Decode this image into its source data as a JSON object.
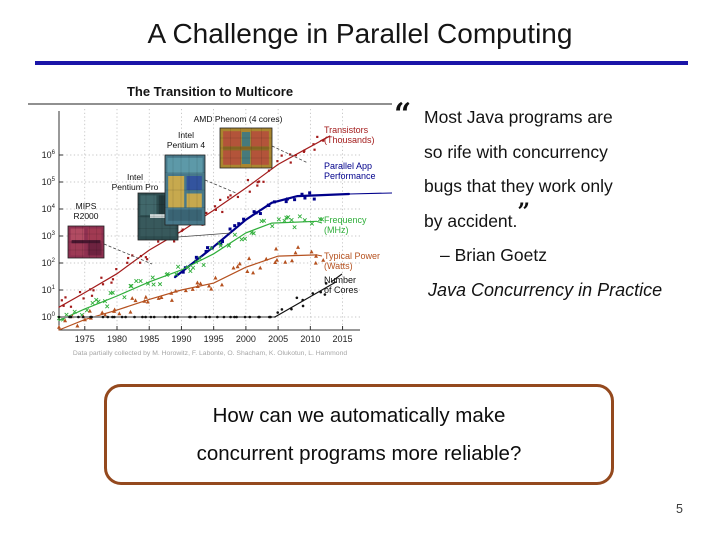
{
  "slide": {
    "title": "A Challenge in Parallel Computing",
    "accent_rule_color": "#1a15a8",
    "page_number": "5",
    "quote": {
      "open_mark": "“",
      "close_mark": "”",
      "lines": [
        "Most Java programs are",
        "so rife with concurrency",
        "bugs that they work only",
        "by accident."
      ],
      "attribution": "– Brian Goetz",
      "source": "Java Concurrency in Practice"
    },
    "question_box": {
      "border_color": "#94491e",
      "line1": "How can we automatically make",
      "line2": "concurrent programs more reliable?"
    }
  },
  "chart_data": {
    "type": "scatter",
    "title": "The Transition to Multicore",
    "caption": "Data partially collected by M. Horowitz, F. Labonte, O. Shacham, K. Olukotun, L. Hammond",
    "x_range": [
      1971,
      2016
    ],
    "x_ticks": [
      1975,
      1980,
      1985,
      1990,
      1995,
      2000,
      2005,
      2010,
      2015
    ],
    "y_scale": "log10",
    "y_tick_exponents": [
      0,
      1,
      2,
      3,
      4,
      5,
      6
    ],
    "ylim_exponents": [
      -0.5,
      7
    ],
    "grid": true,
    "legend_position": "right",
    "series": [
      {
        "name": "Transistors (Thousands)",
        "legend_lines": [
          "Transistors",
          "(Thousands)"
        ],
        "color": "#a31b1b",
        "marker": "square",
        "marker_size": 2.2,
        "line_width": 1.2,
        "trend": [
          [
            1971,
            2.3
          ],
          [
            1975,
            8
          ],
          [
            1980,
            40
          ],
          [
            1985,
            300
          ],
          [
            1990,
            1500
          ],
          [
            1995,
            9000
          ],
          [
            2000,
            60000
          ],
          [
            2005,
            450000
          ],
          [
            2009,
            1500000
          ],
          [
            2013,
            5000000
          ]
        ],
        "scatter": {
          "range": [
            1971,
            2012
          ],
          "count": 58,
          "jitter": 0.3
        }
      },
      {
        "name": "Parallel App Performance",
        "legend_lines": [
          "Parallel App",
          "Performance"
        ],
        "color": "#00008b",
        "marker": "square",
        "marker_size": 3.0,
        "line_width": 2.2,
        "trend": [
          [
            1989,
            30
          ],
          [
            1995,
            400
          ],
          [
            2000,
            4000
          ],
          [
            2004,
            17000
          ],
          [
            2008,
            30000
          ],
          [
            2016,
            36000
          ]
        ],
        "scatter": {
          "range": [
            1990,
            2011
          ],
          "count": 26,
          "jitter": 0.15
        }
      },
      {
        "name": "Frequency (MHz)",
        "legend_lines": [
          "Frequency",
          "(MHz)"
        ],
        "color": "#2fae3a",
        "marker": "x",
        "marker_size": 1.8,
        "line_width": 1.2,
        "trend": [
          [
            1971,
            0.74
          ],
          [
            1975,
            2
          ],
          [
            1980,
            6
          ],
          [
            1985,
            20
          ],
          [
            1990,
            55
          ],
          [
            1995,
            220
          ],
          [
            2000,
            1300
          ],
          [
            2004,
            3000
          ],
          [
            2011,
            3500
          ]
        ],
        "scatter": {
          "range": [
            1971,
            2012
          ],
          "count": 56,
          "jitter": 0.26
        }
      },
      {
        "name": "Typical Power (Watts)",
        "legend_lines": [
          "Typical Power",
          "(Watts)"
        ],
        "color": "#b5511f",
        "marker": "triangle",
        "marker_size": 2.0,
        "line_width": 1.2,
        "trend": [
          [
            1971,
            0.33
          ],
          [
            1975,
            0.8
          ],
          [
            1980,
            1.8
          ],
          [
            1985,
            4.5
          ],
          [
            1990,
            10
          ],
          [
            1995,
            18
          ],
          [
            2000,
            70
          ],
          [
            2005,
            180
          ],
          [
            2011,
            200
          ]
        ],
        "scatter": {
          "range": [
            1971,
            2012
          ],
          "count": 52,
          "jitter": 0.32
        }
      },
      {
        "name": "Number of Cores",
        "legend_lines": [
          "Number",
          "of Cores"
        ],
        "color": "#111111",
        "marker": "dot",
        "marker_size": 1.3,
        "line_width": 1.2,
        "flat_until": 2004,
        "trend_segments": [
          {
            "color": "#8c8c8c",
            "width": 1.8,
            "points": [
              [
                1971,
                1
              ],
              [
                2004.5,
                1
              ]
            ]
          },
          {
            "color": "#111111",
            "width": 1.2,
            "points": [
              [
                2004.5,
                1
              ],
              [
                2014,
                20
              ]
            ]
          }
        ],
        "scatter": {
          "range": [
            1971,
            2013
          ],
          "count": 48,
          "jitter": 0.26
        }
      }
    ],
    "annotations": [
      {
        "label_lines": [
          "MIPS",
          "R2000"
        ]
      },
      {
        "label_lines": [
          "Intel",
          "Pentium Pro"
        ]
      },
      {
        "label_lines": [
          "Intel",
          "Pentium 4"
        ]
      },
      {
        "label_lines": [
          "AMD Phenom (4 cores)"
        ]
      }
    ]
  }
}
